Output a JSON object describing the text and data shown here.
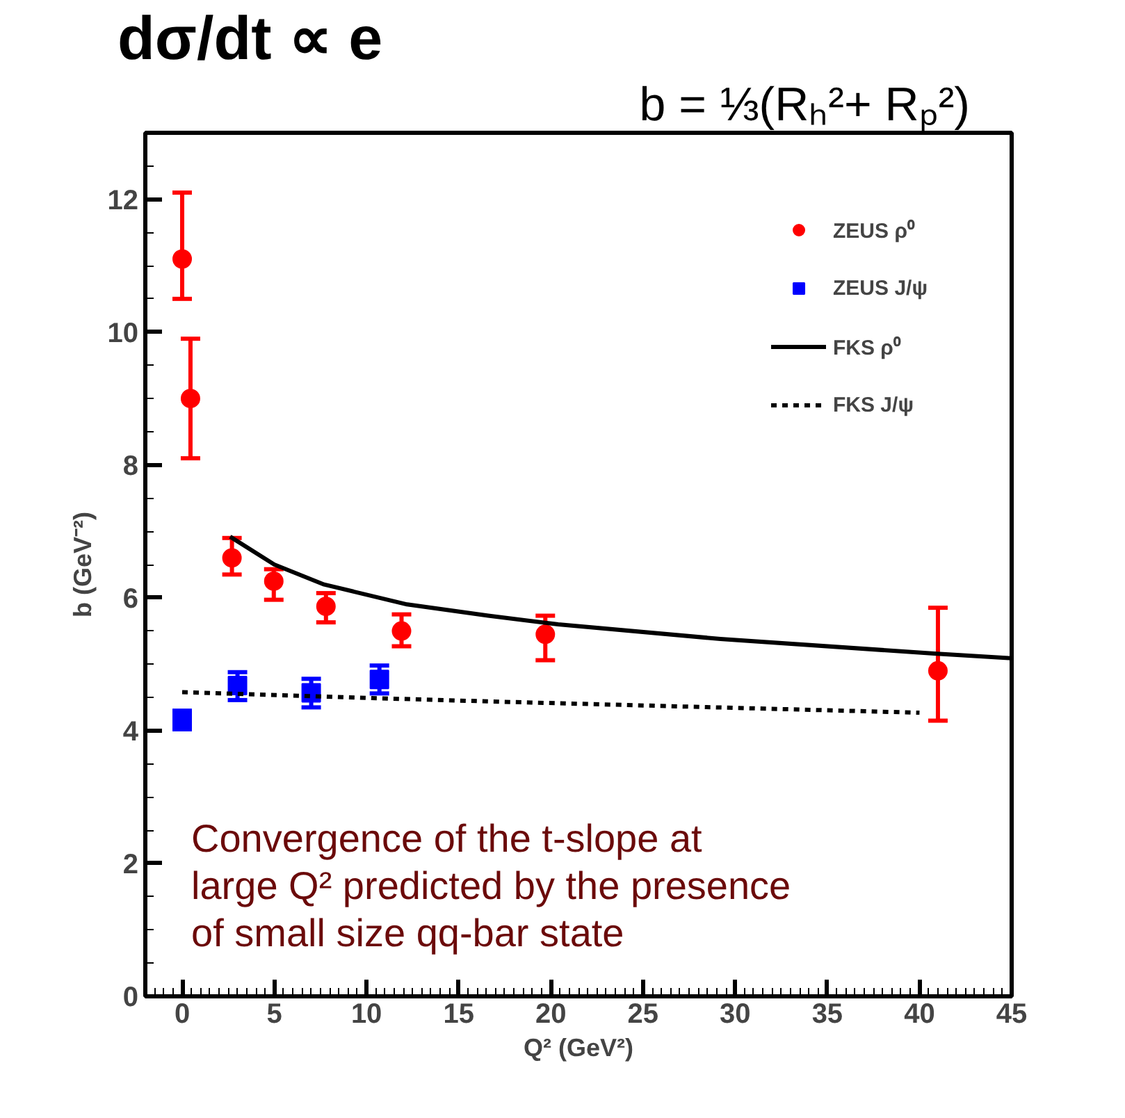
{
  "chart_data": {
    "type": "scatter",
    "xlabel": "Q² (GeV²)",
    "ylabel": "b (GeV⁻²)",
    "xlim": [
      -2,
      45
    ],
    "xticks": [
      0,
      5,
      10,
      15,
      20,
      25,
      30,
      35,
      40,
      45
    ],
    "ylim": [
      0,
      13
    ],
    "yticks": [
      0,
      2,
      4,
      6,
      8,
      10,
      12
    ],
    "grid": false,
    "legend": "top right",
    "annotations": [
      "dσ/dt ∝ e",
      "b = ⅓(Rₕ²+ Rₚ²)",
      "Convergence of the t-slope at\nlarge Q² predicted by the presence\nof small size qq-bar state"
    ],
    "series": [
      {
        "name": "ZEUS ρ⁰",
        "marker": "circle",
        "color": "#ff0000",
        "x": [
          0,
          0.45,
          2.7,
          4.97,
          7.8,
          11.9,
          19.7,
          41
        ],
        "values": [
          11.1,
          9.0,
          6.6,
          6.25,
          5.87,
          5.5,
          5.45,
          4.9
        ],
        "errors": [
          [
            10.5,
            12.1
          ],
          [
            8.1,
            9.9
          ],
          [
            6.35,
            6.9
          ],
          [
            5.97,
            6.43
          ],
          [
            5.63,
            6.07
          ],
          [
            5.27,
            5.75
          ],
          [
            5.06,
            5.73
          ],
          [
            4.15,
            5.85
          ]
        ]
      },
      {
        "name": "ZEUS J/ψ",
        "marker": "square",
        "color": "#0000ff",
        "x": [
          0,
          3.0,
          7.0,
          10.7
        ],
        "values": [
          4.18,
          4.68,
          4.57,
          4.77
        ],
        "errors": [
          [
            4.02,
            4.3
          ],
          [
            4.46,
            4.88
          ],
          [
            4.35,
            4.78
          ],
          [
            4.56,
            4.98
          ]
        ]
      },
      {
        "name": "FKS ρ⁰",
        "type": "line",
        "marker": "none",
        "line_style": "solid",
        "color": "#000000",
        "x": [
          2.6,
          5,
          7.7,
          12.2,
          16.6,
          20.4,
          29.2,
          40.8,
          45
        ],
        "values": [
          6.92,
          6.5,
          6.2,
          5.9,
          5.73,
          5.6,
          5.38,
          5.16,
          5.09
        ]
      },
      {
        "name": "FKS J/ψ",
        "type": "line",
        "marker": "none",
        "line_style": "dotted",
        "color": "#000000",
        "x": [
          0,
          10.3,
          16.6,
          40
        ],
        "values": [
          4.58,
          4.49,
          4.44,
          4.27
        ]
      }
    ]
  }
}
